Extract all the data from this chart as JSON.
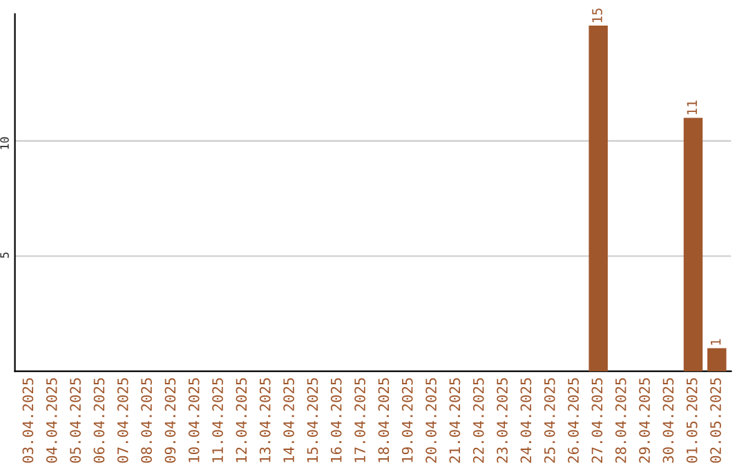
{
  "chart_data": {
    "type": "bar",
    "categories": [
      "03.04.2025",
      "04.04.2025",
      "05.04.2025",
      "06.04.2025",
      "07.04.2025",
      "08.04.2025",
      "09.04.2025",
      "10.04.2025",
      "11.04.2025",
      "12.04.2025",
      "13.04.2025",
      "14.04.2025",
      "15.04.2025",
      "16.04.2025",
      "17.04.2025",
      "18.04.2025",
      "19.04.2025",
      "20.04.2025",
      "21.04.2025",
      "22.04.2025",
      "23.04.2025",
      "24.04.2025",
      "25.04.2025",
      "26.04.2025",
      "27.04.2025",
      "28.04.2025",
      "29.04.2025",
      "30.04.2025",
      "01.05.2025",
      "02.05.2025"
    ],
    "values": [
      null,
      null,
      null,
      null,
      null,
      null,
      null,
      null,
      null,
      null,
      null,
      null,
      null,
      null,
      null,
      null,
      null,
      null,
      null,
      null,
      null,
      null,
      null,
      null,
      15,
      null,
      null,
      null,
      11,
      1
    ],
    "value_labels": [
      null,
      null,
      null,
      null,
      null,
      null,
      null,
      null,
      null,
      null,
      null,
      null,
      null,
      null,
      null,
      null,
      null,
      null,
      null,
      null,
      null,
      null,
      null,
      null,
      "15",
      null,
      null,
      null,
      "11",
      "1"
    ],
    "color": "#a0572c",
    "ylim": [
      0,
      15.5
    ],
    "yticks": [
      5,
      10
    ],
    "grid": "y"
  }
}
